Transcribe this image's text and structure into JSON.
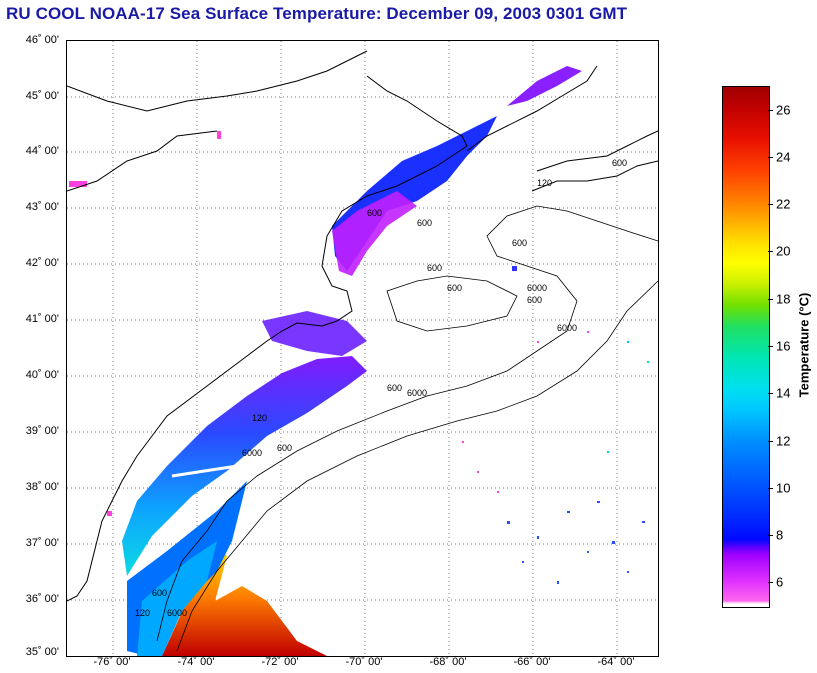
{
  "title": "RU COOL  NOAA-17  Sea Surface Temperature:  December 09, 2003 0301 GMT",
  "map": {
    "lat_ticks": [
      "46˚ 00'",
      "45˚ 00'",
      "44˚ 00'",
      "43˚ 00'",
      "42˚ 00'",
      "41˚ 00'",
      "40˚ 00'",
      "39˚ 00'",
      "38˚ 00'",
      "37˚ 00'",
      "36˚ 00'",
      "35˚ 00'"
    ],
    "lon_ticks": [
      "-76˚ 00'",
      "-74˚ 00'",
      "-72˚ 00'",
      "-70˚ 00'",
      "-68˚ 00'",
      "-66˚ 00'",
      "-64˚ 00'"
    ],
    "contour_labels": [
      "600",
      "6000",
      "600",
      "600",
      "600",
      "600",
      "600",
      "6000",
      "6000",
      "600",
      "6000",
      "600",
      "120",
      "600",
      "6000",
      "120",
      "120",
      "600"
    ],
    "grid": "dotted"
  },
  "colorbar": {
    "label": "Temperature (°C)",
    "ticks": [
      "26",
      "24",
      "22",
      "20",
      "18",
      "16",
      "14",
      "12",
      "10",
      "8",
      "6"
    ],
    "min": 5,
    "max": 27,
    "colors": {
      "warm": "#c00000",
      "mid": "#00e6b4",
      "cold": "#0030ff",
      "coldest": "#e030ff"
    }
  }
}
